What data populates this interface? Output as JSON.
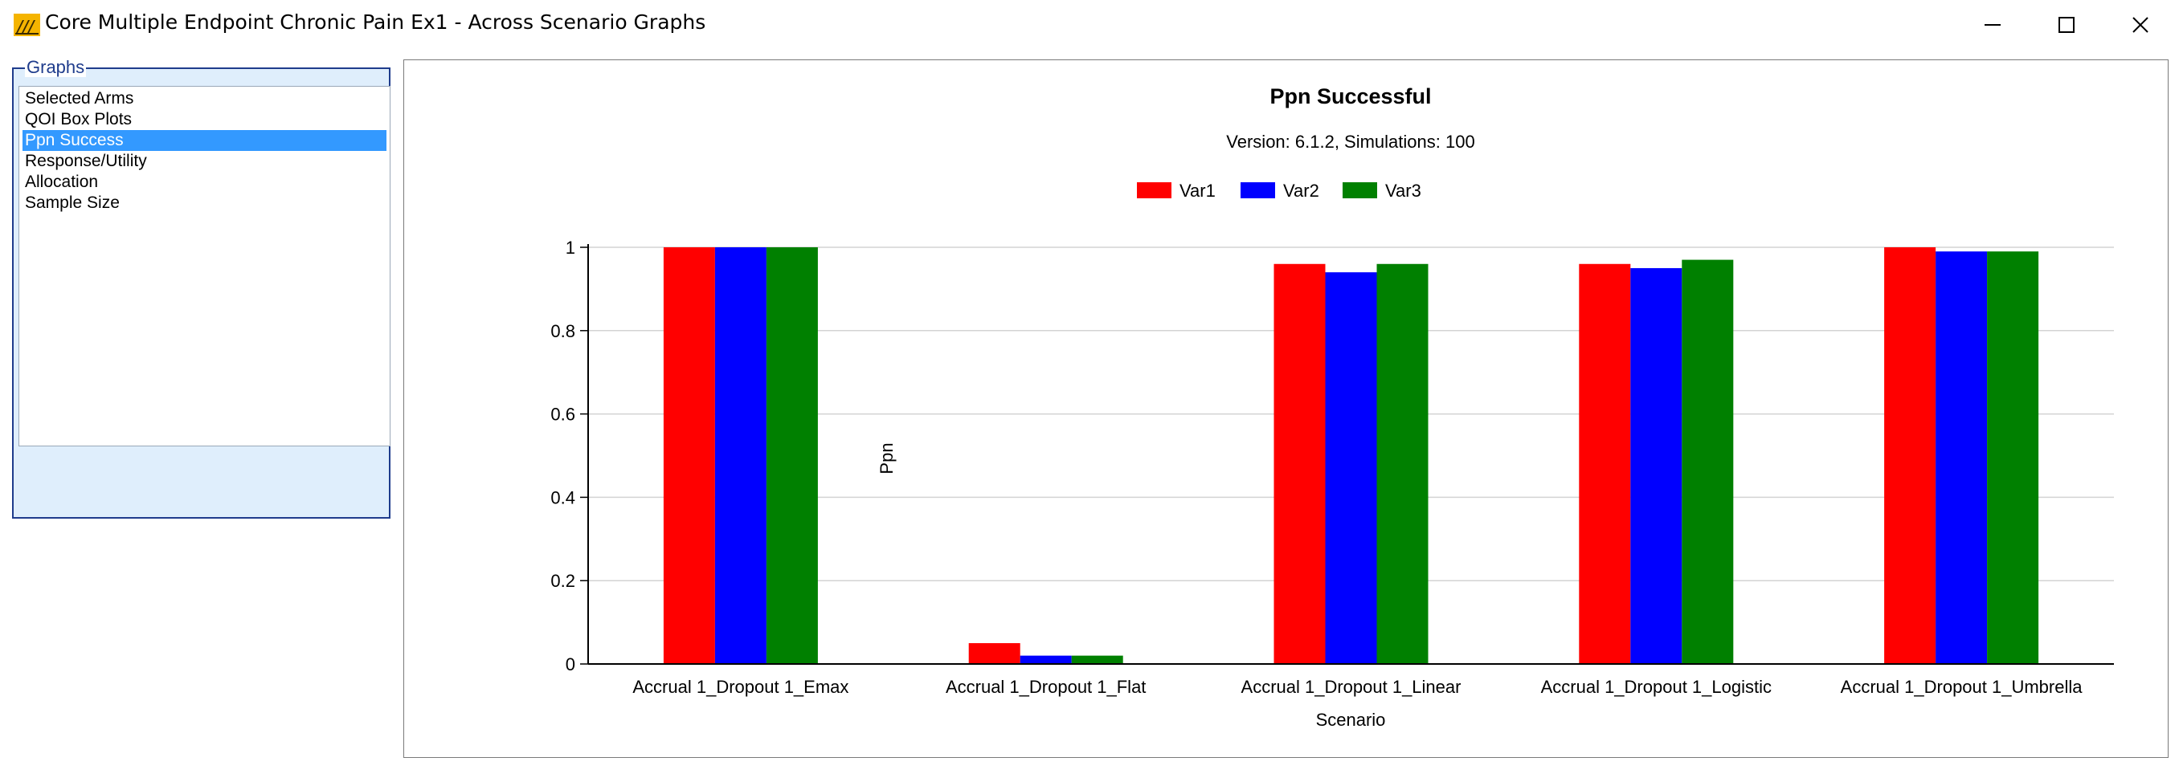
{
  "window": {
    "title": "Core Multiple Endpoint Chronic Pain Ex1 - Across Scenario Graphs",
    "icon": "app-logo-icon",
    "controls": [
      "minimize-icon",
      "maximize-icon",
      "close-icon"
    ]
  },
  "graphs_panel": {
    "label": "Graphs",
    "items": [
      {
        "label": "Selected Arms",
        "selected": false
      },
      {
        "label": "QOI Box Plots",
        "selected": false
      },
      {
        "label": "Ppn Success",
        "selected": true
      },
      {
        "label": "Response/Utility",
        "selected": false
      },
      {
        "label": "Allocation",
        "selected": false
      },
      {
        "label": "Sample Size",
        "selected": false
      }
    ]
  },
  "chart_data": {
    "type": "bar",
    "title": "Ppn Successful",
    "subtitle": "Version: 6.1.2, Simulations: 100",
    "xlabel": "Scenario",
    "ylabel": "Ppn",
    "ylim": [
      0,
      1
    ],
    "yticks": [
      "0",
      "0.2",
      "0.4",
      "0.6",
      "0.8",
      "1"
    ],
    "grid": true,
    "legend_position": "top-center",
    "categories": [
      "Accrual 1_Dropout 1_Emax",
      "Accrual 1_Dropout 1_Flat",
      "Accrual 1_Dropout 1_Linear",
      "Accrual 1_Dropout 1_Logistic",
      "Accrual 1_Dropout 1_Umbrella"
    ],
    "series": [
      {
        "name": "Var1",
        "color": "#ff0000",
        "values": [
          1.0,
          0.05,
          0.96,
          0.96,
          1.0
        ]
      },
      {
        "name": "Var2",
        "color": "#0000ff",
        "values": [
          1.0,
          0.02,
          0.94,
          0.95,
          0.99
        ]
      },
      {
        "name": "Var3",
        "color": "#008000",
        "values": [
          1.0,
          0.02,
          0.96,
          0.97,
          0.99
        ]
      }
    ]
  }
}
